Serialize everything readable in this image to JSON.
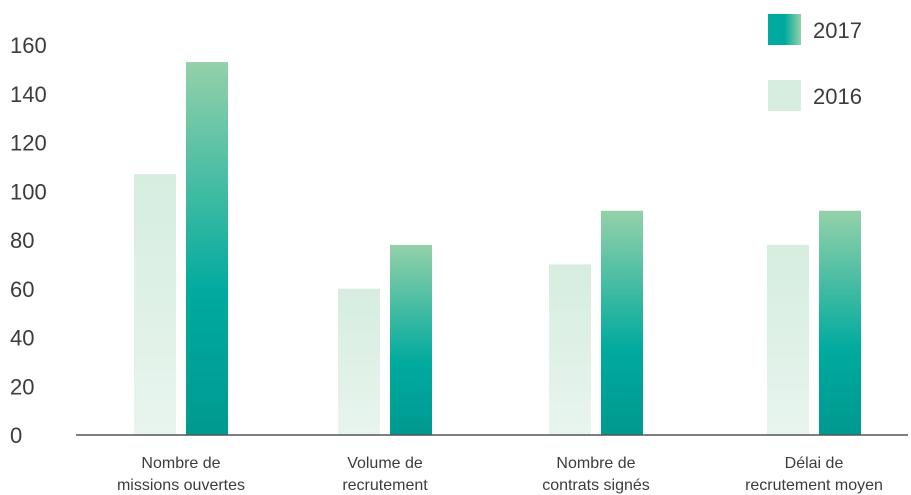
{
  "chart_data": {
    "type": "bar",
    "title": "",
    "xlabel": "",
    "ylabel": "",
    "categories": [
      [
        "Nombre de",
        "missions ouvertes"
      ],
      [
        "Volume de",
        "recrutement"
      ],
      [
        "Nombre de",
        "contrats signés"
      ],
      [
        "Délai de",
        "recrutement moyen"
      ]
    ],
    "series": [
      {
        "name": "2016",
        "values": [
          107,
          60,
          70,
          78
        ]
      },
      {
        "name": "2017",
        "values": [
          153,
          78,
          92,
          92
        ]
      }
    ],
    "ylim": [
      0,
      160
    ],
    "yticks": [
      0,
      20,
      40,
      60,
      80,
      100,
      120,
      140,
      160
    ],
    "grid": false,
    "legend_position": "top-right",
    "colors": {
      "s2016_light": "#e6f4ec",
      "s2016_dark": "#d0ebdd",
      "s2017_top": "#94d1a9",
      "s2017_bottom": "#00a99d",
      "s2017_base": "#009990",
      "axis": "#555555"
    }
  }
}
